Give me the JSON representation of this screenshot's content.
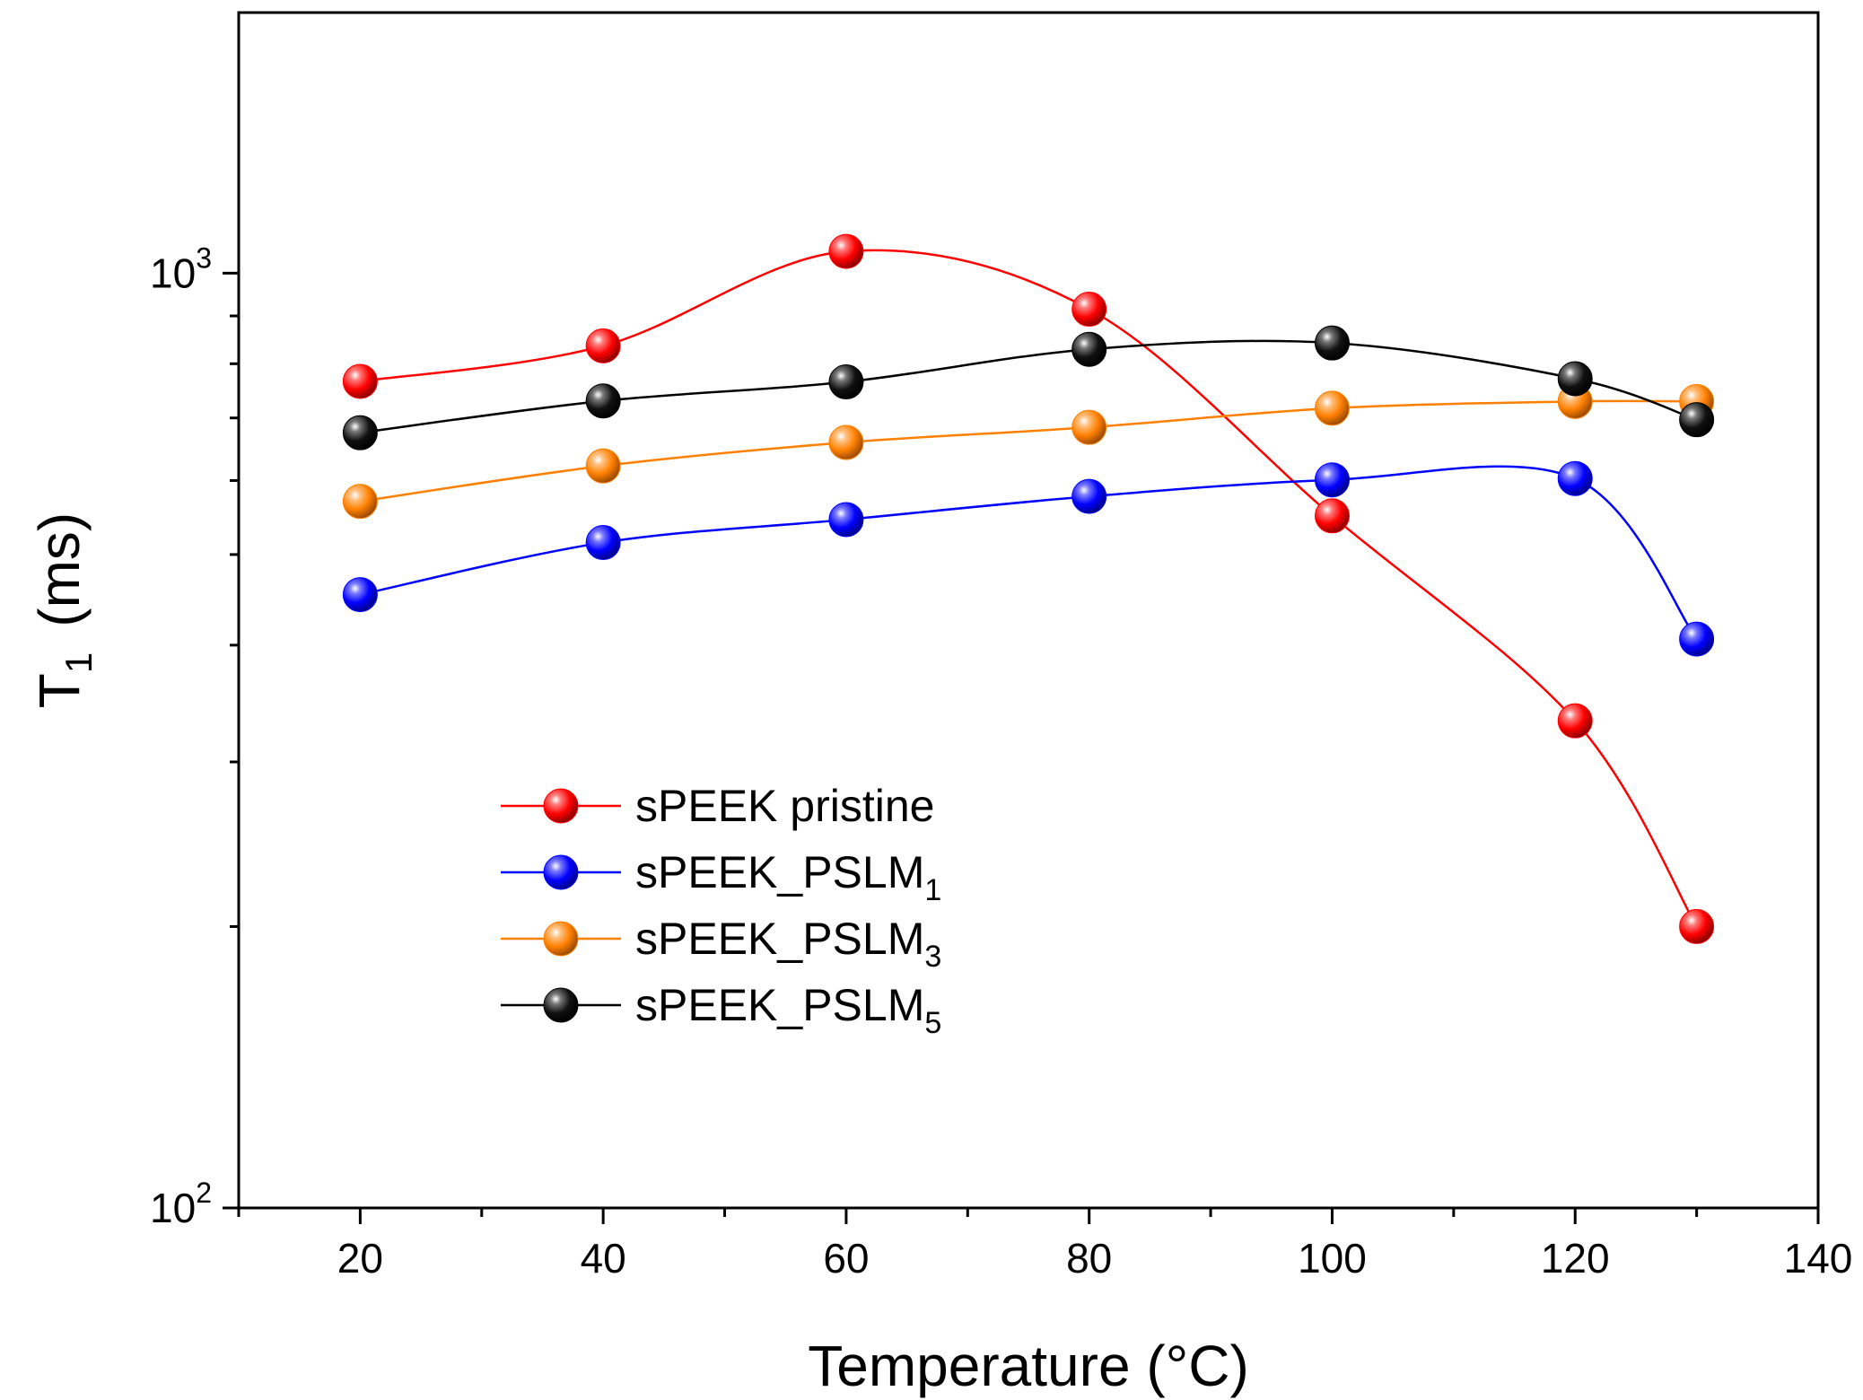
{
  "chart_data": {
    "type": "line",
    "xlabel": "Temperature (°C)",
    "ylabel_main": "T",
    "ylabel_sub": "1",
    "ylabel_unit": "(ms)",
    "y_scale": "log",
    "xlim": [
      10,
      140
    ],
    "ylim": [
      100,
      1900
    ],
    "x_ticks": [
      20,
      40,
      60,
      80,
      100,
      120,
      140
    ],
    "x_tick_labels": [
      "20",
      "40",
      "60",
      "80",
      "100",
      "120",
      "140"
    ],
    "y_ticks": [
      {
        "value": 1000,
        "base": "10",
        "exp": "3"
      },
      {
        "value": 100,
        "base": "10",
        "exp": "2"
      }
    ],
    "legend_position": "lower-left",
    "series": [
      {
        "name": "sPEEK pristine",
        "name_base": "sPEEK pristine",
        "name_sub": "",
        "color": "#ff0000",
        "x": [
          20,
          40,
          60,
          80,
          100,
          120,
          130
        ],
        "y": [
          766,
          836,
          1055,
          915,
          550,
          332,
          200
        ]
      },
      {
        "name": "sPEEK_PSLM1",
        "name_base": "sPEEK_PSLM",
        "name_sub": "1",
        "color": "#0000ff",
        "x": [
          20,
          40,
          60,
          80,
          100,
          120,
          130
        ],
        "y": [
          453,
          515,
          545,
          577,
          601,
          603,
          406
        ]
      },
      {
        "name": "sPEEK_PSLM3",
        "name_base": "sPEEK_PSLM",
        "name_sub": "3",
        "color": "#ff8000",
        "x": [
          20,
          40,
          60,
          80,
          100,
          120,
          130
        ],
        "y": [
          570,
          622,
          659,
          684,
          717,
          729,
          729
        ]
      },
      {
        "name": "sPEEK_PSLM5",
        "name_base": "sPEEK_PSLM",
        "name_sub": "5",
        "color": "#000000",
        "x": [
          20,
          40,
          60,
          80,
          100,
          120,
          130
        ],
        "y": [
          675,
          730,
          765,
          829,
          842,
          771,
          697
        ]
      }
    ]
  }
}
